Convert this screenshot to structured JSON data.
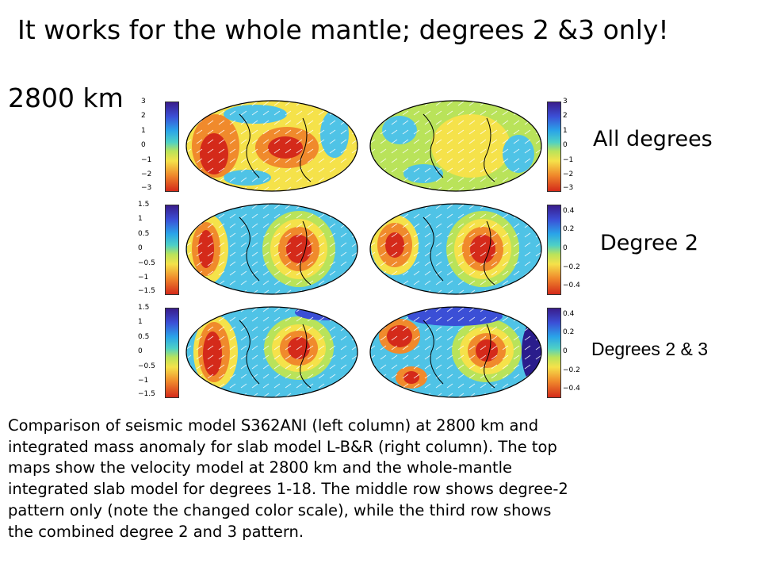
{
  "title": "It works for the whole mantle; degrees 2 &3 only!",
  "depth_label": "2800 km",
  "row_labels": [
    "All degrees",
    "Degree 2",
    "Degrees 2 & 3"
  ],
  "colorbars": {
    "left": [
      [
        "3",
        "2",
        "1",
        "0",
        "−1",
        "−2",
        "−3"
      ],
      [
        "1.5",
        "1",
        "0.5",
        "0",
        "−0.5",
        "−1",
        "−1.5"
      ],
      [
        "1.5",
        "1",
        "0.5",
        "0",
        "−0.5",
        "−1",
        "−1.5"
      ]
    ],
    "right": [
      [
        "3",
        "2",
        "1",
        "0",
        "−1",
        "−2",
        "−3"
      ],
      [
        "0.4",
        "0.2",
        "0",
        "−0.2",
        "−0.4"
      ],
      [
        "0.4",
        "0.2",
        "0",
        "−0.2",
        "−0.4"
      ]
    ]
  },
  "caption_lines": [
    "Comparison of seismic model S362ANI (left column) at 2800 km and",
    "integrated mass anomaly for slab model L-B&R (right column). The top",
    "maps show the velocity model at 2800 km and the whole-mantle",
    "integrated slab model for degrees 1-18. The middle row shows degree-2",
    "pattern only (note the changed color scale), while the third row shows",
    "the combined degree 2 and 3 pattern."
  ],
  "colors": {
    "red": "#d42a1a",
    "orange": "#f08a2c",
    "yellow": "#f5e24a",
    "cyan": "#4fc3e6",
    "blue": "#3b4fd6",
    "navy": "#2a1d8c"
  }
}
